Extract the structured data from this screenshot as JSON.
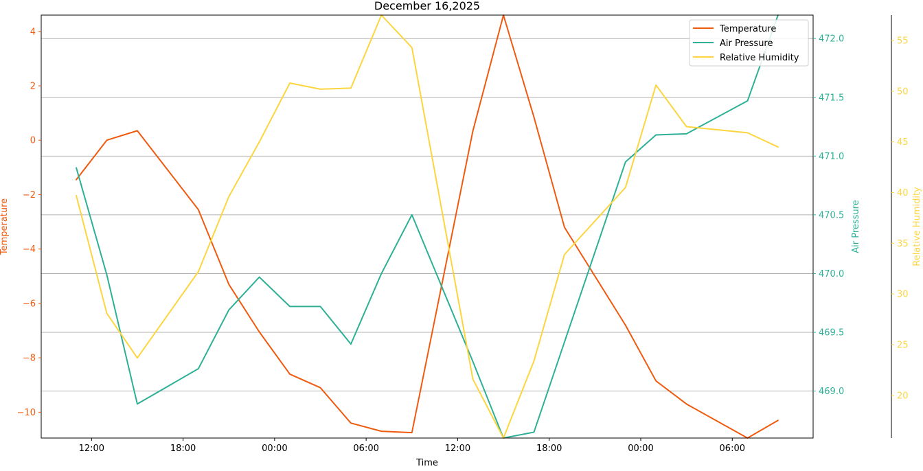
{
  "chart_data": {
    "type": "line",
    "title": "December 16,2025",
    "xlabel": "Time",
    "x": [
      "11:00",
      "13:00",
      "15:00",
      "17:00",
      "19:00",
      "21:00",
      "23:00",
      "01:00",
      "03:00",
      "05:00",
      "07:00",
      "09:00",
      "11:00",
      "13:00",
      "15:00",
      "17:00",
      "19:00",
      "21:00",
      "23:00",
      "01:00",
      "03:00",
      "05:00",
      "07:00",
      "09:00"
    ],
    "x_hours": [
      0,
      2,
      4,
      6,
      8,
      10,
      12,
      14,
      16,
      18,
      20,
      22,
      24,
      26,
      28,
      30,
      32,
      34,
      36,
      38,
      40,
      42,
      44,
      46
    ],
    "x_ticks": {
      "hours": [
        1,
        7,
        13,
        19,
        25,
        31,
        37,
        43
      ],
      "labels": [
        "12:00",
        "18:00",
        "00:00",
        "06:00",
        "12:00",
        "18:00",
        "00:00",
        "06:00"
      ]
    },
    "xlim": [
      -2.3,
      48.3
    ],
    "grid": "horizontal on right axis",
    "legend_position": "top-right",
    "series": [
      {
        "name": "Temperature",
        "axis": "left",
        "color": "#ef5a0e",
        "ylabel": "Temperature",
        "ylim": [
          -10.95,
          4.6
        ],
        "ticks": [
          4,
          2,
          0,
          -2,
          -4,
          -6,
          -8,
          -10
        ],
        "tick_labels": [
          "4",
          "2",
          "0",
          "−2",
          "−4",
          "−6",
          "−8",
          "−10"
        ],
        "values": [
          -1.45,
          0.0,
          0.35,
          null,
          -2.55,
          -5.3,
          -7.05,
          -8.6,
          -9.1,
          -10.4,
          -10.7,
          -10.75,
          null,
          0.35,
          4.6,
          0.85,
          -3.2,
          null,
          -6.8,
          -8.85,
          -9.7,
          null,
          -10.95,
          -10.3
        ]
      },
      {
        "name": "Air Pressure",
        "axis": "right",
        "color": "#2db095",
        "ylabel": "Air Pressure",
        "ylim": [
          468.6,
          472.2
        ],
        "ticks": [
          472.0,
          471.5,
          471.0,
          470.5,
          470.0,
          469.5,
          469.0
        ],
        "tick_labels": [
          "472.0",
          "471.5",
          "471.0",
          "470.5",
          "470.0",
          "469.5",
          "469.0"
        ],
        "values": [
          470.9,
          469.99,
          468.89,
          null,
          469.19,
          469.69,
          469.97,
          469.72,
          469.72,
          469.4,
          470.0,
          470.5,
          null,
          469.25,
          468.6,
          468.65,
          null,
          null,
          470.95,
          471.18,
          471.19,
          null,
          471.47,
          472.2
        ]
      },
      {
        "name": "Relative Humidity",
        "axis": "right-outer",
        "color": "#fcd53f",
        "ylabel": "Relative Humidity",
        "ylim": [
          15.8,
          57.5
        ],
        "ticks": [
          55,
          50,
          45,
          40,
          35,
          30,
          25,
          20
        ],
        "tick_labels": [
          "55",
          "50",
          "45",
          "40",
          "35",
          "30",
          "25",
          "20"
        ],
        "values": [
          39.7,
          28.1,
          23.7,
          null,
          32.2,
          39.6,
          45.0,
          50.8,
          50.2,
          50.3,
          57.5,
          54.3,
          null,
          21.6,
          15.8,
          23.4,
          33.9,
          null,
          40.5,
          50.6,
          46.5,
          null,
          45.9,
          44.5
        ]
      }
    ]
  }
}
